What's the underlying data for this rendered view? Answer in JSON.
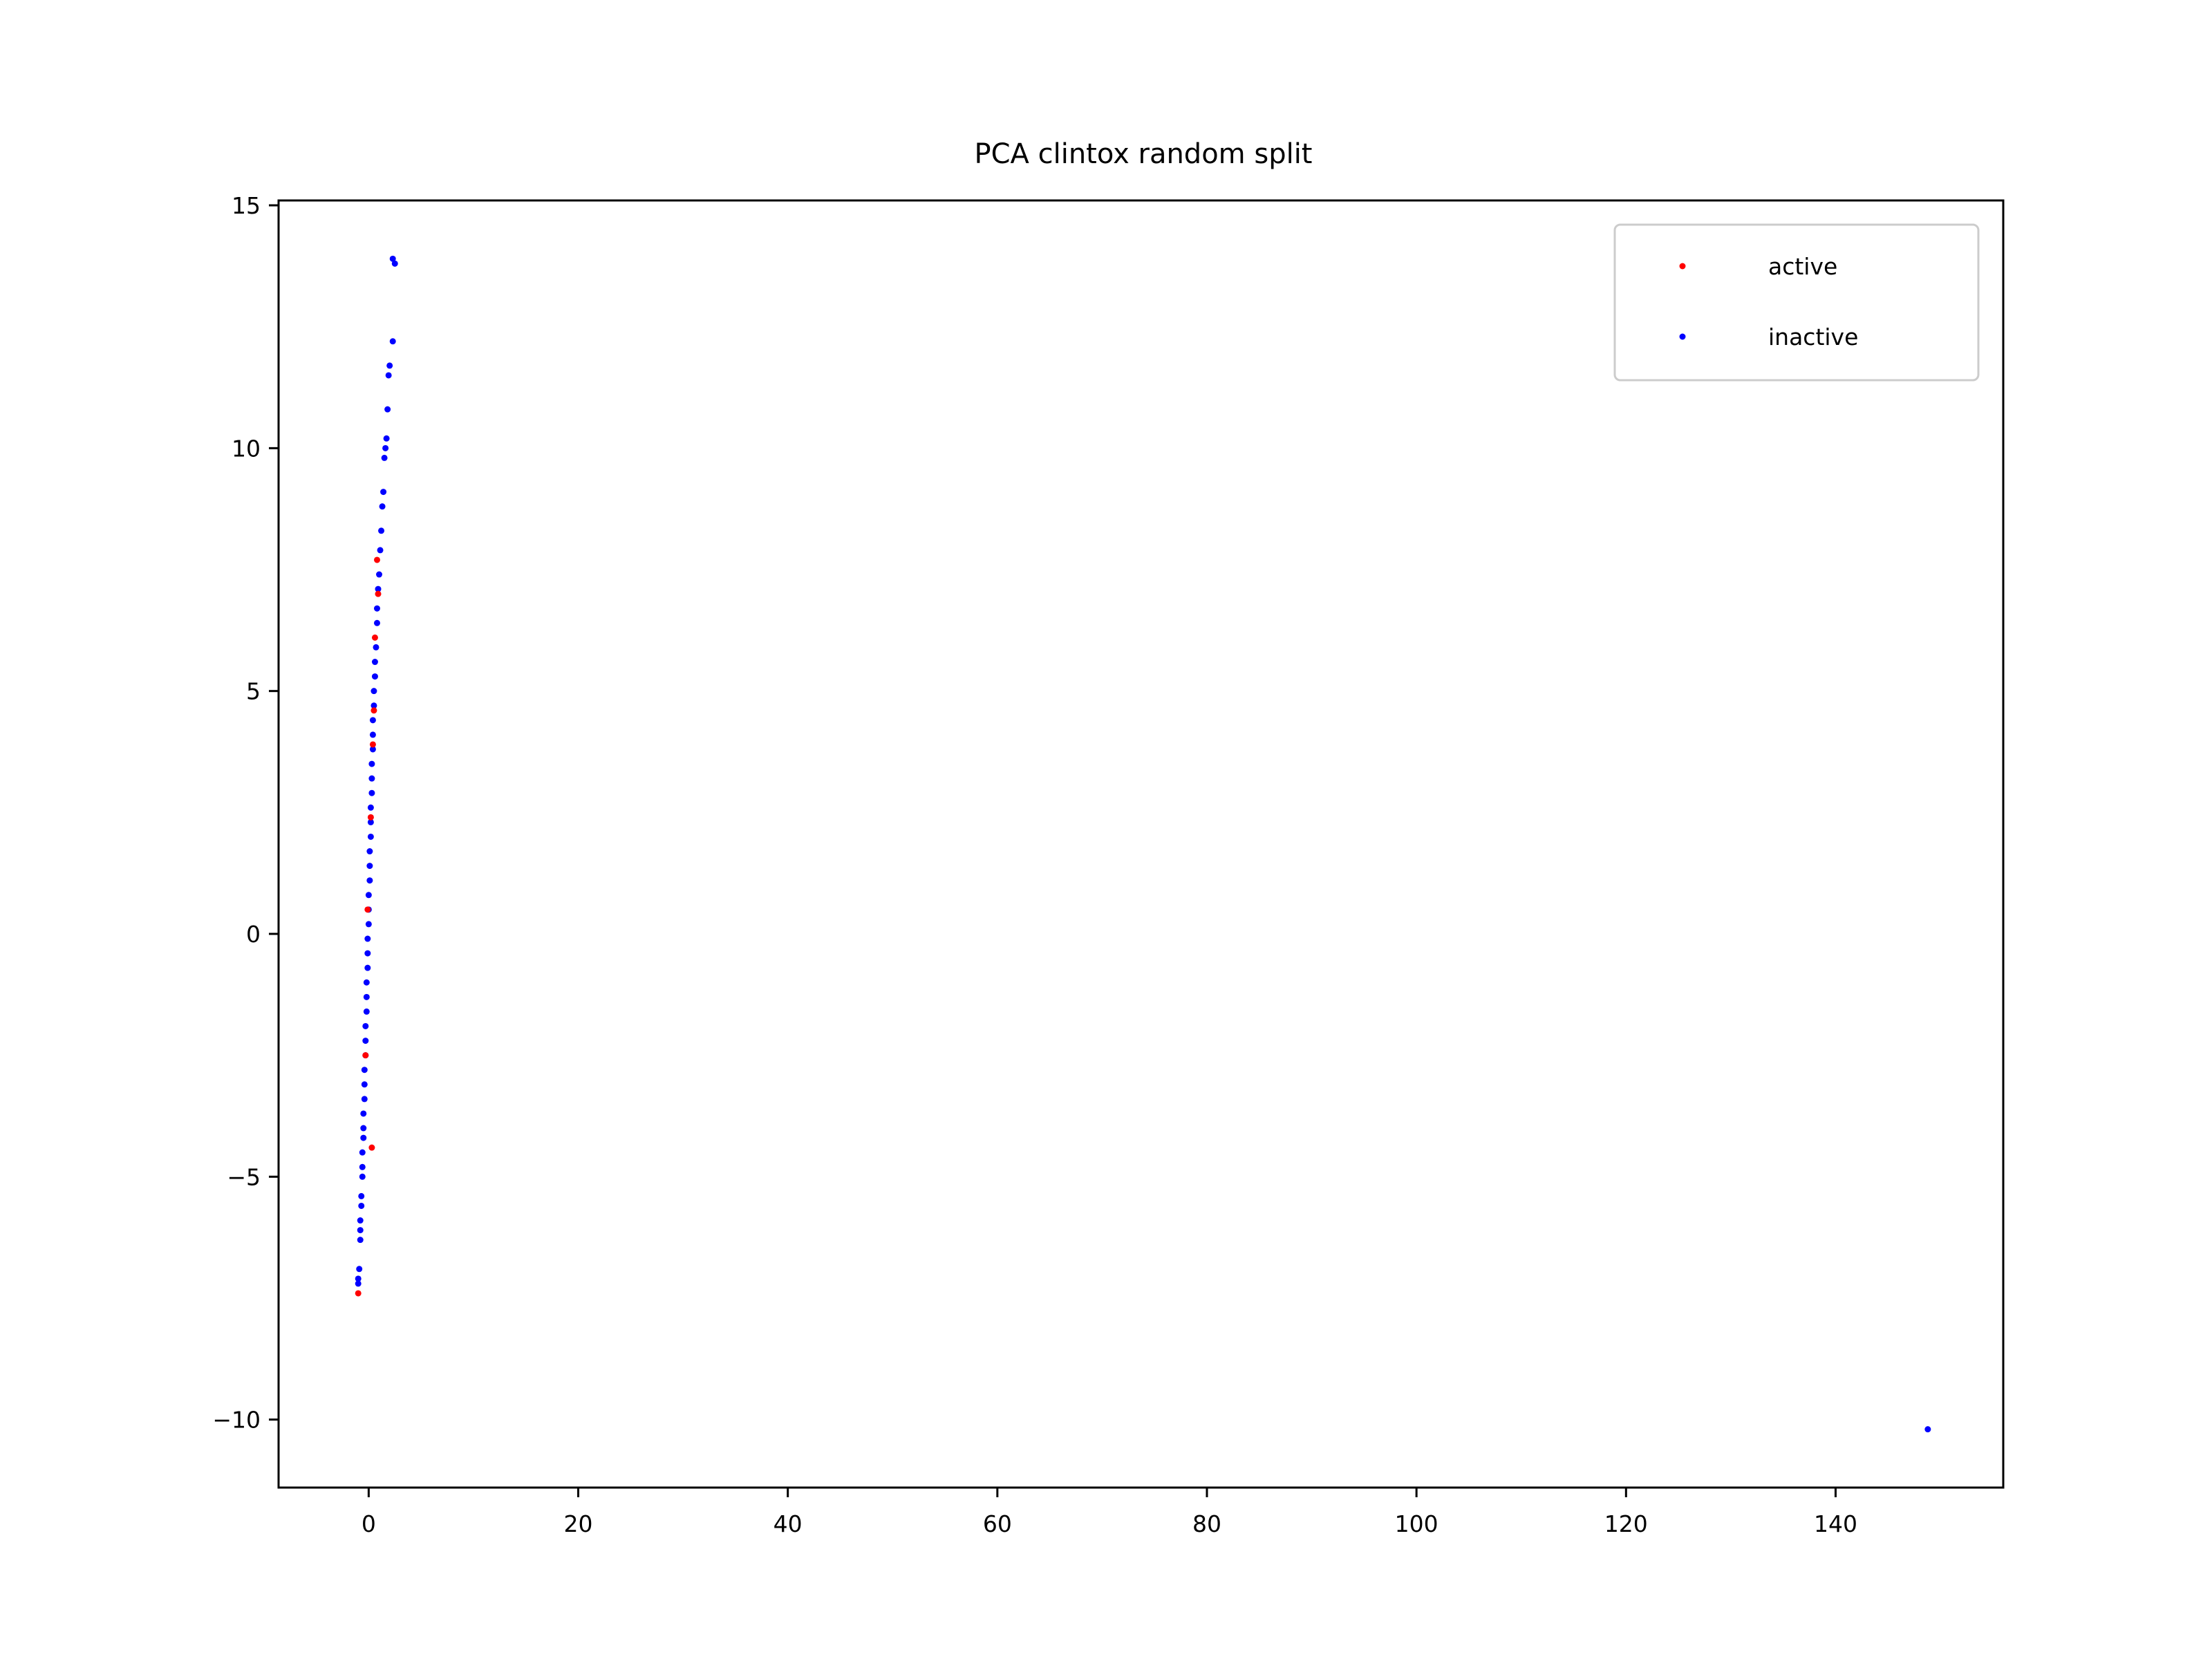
{
  "chart_data": {
    "type": "scatter",
    "title": "PCA clintox random split",
    "xlabel": "",
    "ylabel": "",
    "xlim": [
      -8.6,
      156
    ],
    "ylim": [
      -11.4,
      15.1
    ],
    "x_ticks": [
      0,
      20,
      40,
      60,
      80,
      100,
      120,
      140
    ],
    "y_ticks": [
      -10,
      -5,
      0,
      5,
      10,
      15
    ],
    "x_tick_labels": [
      "0",
      "20",
      "40",
      "60",
      "80",
      "100",
      "120",
      "140"
    ],
    "y_tick_labels": [
      "−10",
      "−5",
      "0",
      "5",
      "10",
      "15"
    ],
    "grid": false,
    "legend_position": "top-right",
    "series": [
      {
        "name": "active",
        "color": "#ff0000",
        "points": [
          [
            -1.0,
            -7.4
          ],
          [
            0.3,
            -4.4
          ],
          [
            0.4,
            3.9
          ],
          [
            0.5,
            4.6
          ],
          [
            0.6,
            6.1
          ],
          [
            0.8,
            7.7
          ],
          [
            0.9,
            7.0
          ],
          [
            -0.3,
            -2.5
          ],
          [
            -0.1,
            0.5
          ],
          [
            0.2,
            2.4
          ]
        ]
      },
      {
        "name": "inactive",
        "color": "#0000ff",
        "points": [
          [
            -1.0,
            -7.2
          ],
          [
            -1.0,
            -7.1
          ],
          [
            -0.9,
            -6.9
          ],
          [
            -0.8,
            -6.3
          ],
          [
            -0.8,
            -6.1
          ],
          [
            -0.8,
            -5.9
          ],
          [
            -0.7,
            -5.6
          ],
          [
            -0.7,
            -5.4
          ],
          [
            -0.6,
            -5.0
          ],
          [
            -0.6,
            -4.8
          ],
          [
            -0.6,
            -4.5
          ],
          [
            -0.5,
            -4.2
          ],
          [
            -0.5,
            -4.0
          ],
          [
            -0.5,
            -3.7
          ],
          [
            -0.4,
            -3.4
          ],
          [
            -0.4,
            -3.1
          ],
          [
            -0.4,
            -2.8
          ],
          [
            -0.3,
            -2.5
          ],
          [
            -0.3,
            -2.2
          ],
          [
            -0.3,
            -1.9
          ],
          [
            -0.2,
            -1.6
          ],
          [
            -0.2,
            -1.3
          ],
          [
            -0.2,
            -1.0
          ],
          [
            -0.1,
            -0.7
          ],
          [
            -0.1,
            -0.4
          ],
          [
            -0.1,
            -0.1
          ],
          [
            0.0,
            0.2
          ],
          [
            0.0,
            0.5
          ],
          [
            0.0,
            0.8
          ],
          [
            0.1,
            1.1
          ],
          [
            0.1,
            1.4
          ],
          [
            0.1,
            1.7
          ],
          [
            0.2,
            2.0
          ],
          [
            0.2,
            2.3
          ],
          [
            0.2,
            2.6
          ],
          [
            0.3,
            2.9
          ],
          [
            0.3,
            3.2
          ],
          [
            0.3,
            3.5
          ],
          [
            0.4,
            3.8
          ],
          [
            0.4,
            4.1
          ],
          [
            0.4,
            4.4
          ],
          [
            0.5,
            4.7
          ],
          [
            0.5,
            5.0
          ],
          [
            0.6,
            5.3
          ],
          [
            0.6,
            5.6
          ],
          [
            0.7,
            5.9
          ],
          [
            0.8,
            6.4
          ],
          [
            0.8,
            6.7
          ],
          [
            0.9,
            7.1
          ],
          [
            1.0,
            7.4
          ],
          [
            1.1,
            7.9
          ],
          [
            1.2,
            8.3
          ],
          [
            1.3,
            8.8
          ],
          [
            1.4,
            9.1
          ],
          [
            1.5,
            9.8
          ],
          [
            1.6,
            10.0
          ],
          [
            1.7,
            10.2
          ],
          [
            1.8,
            10.8
          ],
          [
            1.9,
            11.5
          ],
          [
            2.0,
            11.7
          ],
          [
            2.3,
            12.2
          ],
          [
            2.3,
            13.9
          ],
          [
            2.5,
            13.8
          ],
          [
            148.8,
            -10.2
          ]
        ]
      }
    ]
  }
}
